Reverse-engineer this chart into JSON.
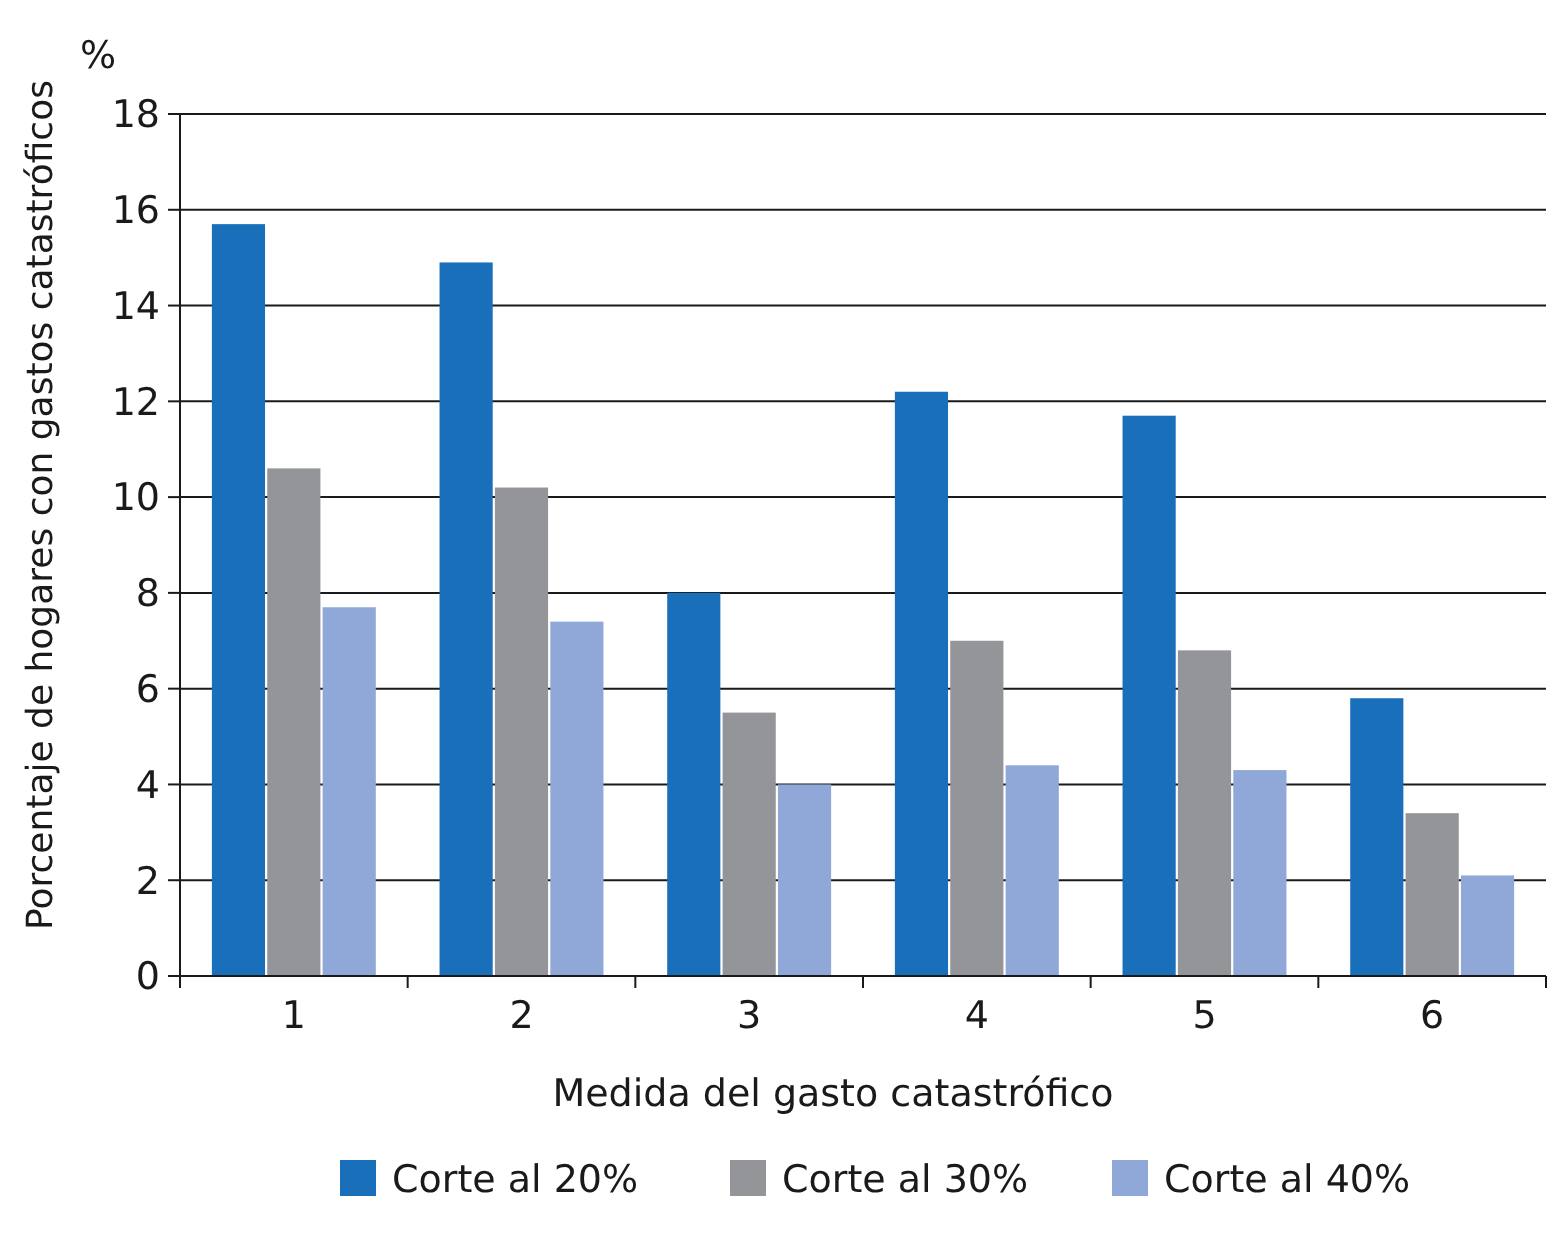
{
  "chart_data": {
    "type": "bar",
    "xlabel": "Medida del gasto catastrófico",
    "ylabel": "Porcentaje de hogares con gastos catastróficos",
    "annotations": [
      "%"
    ],
    "categories": [
      "1",
      "2",
      "3",
      "4",
      "5",
      "6"
    ],
    "series": [
      {
        "name": "Corte al 20%",
        "color": "#1a6fba",
        "values": [
          15.7,
          14.9,
          8.0,
          12.2,
          11.7,
          5.8
        ]
      },
      {
        "name": "Corte al 30%",
        "color": "#939598",
        "values": [
          10.6,
          10.2,
          5.5,
          7.0,
          6.8,
          3.4
        ]
      },
      {
        "name": "Corte al 40%",
        "color": "#8fa8d8",
        "values": [
          7.7,
          7.4,
          4.0,
          4.4,
          4.3,
          2.1
        ]
      }
    ],
    "ylim": [
      0,
      18
    ],
    "yticks": [
      0,
      2,
      4,
      6,
      8,
      10,
      12,
      14,
      16,
      18
    ],
    "grid": "y",
    "legend": "bottom"
  }
}
